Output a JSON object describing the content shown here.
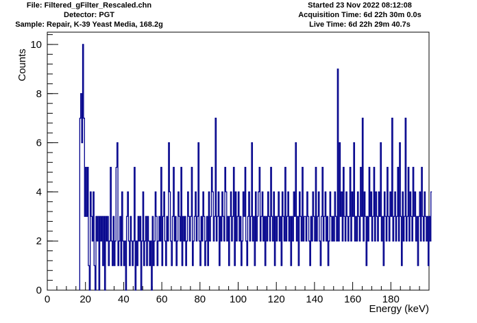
{
  "header": {
    "file": "File: Filtered_gFilter_Rescaled.chn",
    "detector": "Detector: PGT",
    "sample": "Sample: Repair, K-39 Yeast Media, 168.2g",
    "started": "Started 23 Nov 2022 08:12:08",
    "acquisition": "Acquisition Time: 6d 22h 30m 0.0s",
    "live": "Live Time: 6d 22h 29m 40.7s"
  },
  "chart_data": {
    "type": "line",
    "style": "step-histogram",
    "line_color": "#00008b",
    "xlabel": "Energy (keV)",
    "ylabel": "Counts",
    "xlim": [
      0,
      200
    ],
    "ylim": [
      0,
      10.5
    ],
    "x_ticks": [
      0,
      20,
      40,
      60,
      80,
      100,
      120,
      140,
      160,
      180
    ],
    "y_ticks": [
      0,
      2,
      4,
      6,
      8,
      10
    ],
    "x_tick_labels": [
      "0",
      "20",
      "40",
      "60",
      "80",
      "100",
      "120",
      "140",
      "160",
      "180"
    ],
    "y_tick_labels": [
      "0",
      "2",
      "4",
      "6",
      "8",
      "10"
    ],
    "grid": false,
    "bin_start": 17.0,
    "bin_width": 0.5,
    "counts": [
      7,
      8,
      6,
      10,
      7,
      3,
      5,
      3,
      5,
      1,
      0,
      4,
      3,
      2,
      4,
      1,
      0,
      3,
      2,
      3,
      0,
      3,
      2,
      3,
      1,
      3,
      0,
      3,
      2,
      3,
      1,
      2,
      5,
      2,
      1,
      3,
      1,
      2,
      5,
      6,
      1,
      2,
      3,
      1,
      4,
      2,
      1,
      2,
      0,
      3,
      4,
      2,
      1,
      3,
      2,
      1,
      2,
      5,
      0,
      2,
      1,
      3,
      2,
      3,
      0,
      2,
      4,
      1,
      2,
      3,
      1,
      3,
      2,
      1,
      2,
      0,
      3,
      1,
      2,
      4,
      3,
      1,
      2,
      3,
      2,
      5,
      1,
      3,
      4,
      2,
      1,
      3,
      2,
      6,
      4,
      2,
      1,
      3,
      5,
      2,
      3,
      1,
      2,
      4,
      3,
      2,
      5,
      1,
      3,
      2,
      3,
      1,
      2,
      4,
      3,
      2,
      3,
      5,
      1,
      2,
      3,
      4,
      2,
      3,
      6,
      2,
      1,
      3,
      2,
      4,
      3,
      1,
      2,
      3,
      1,
      4,
      2,
      3,
      5,
      4,
      2,
      3,
      7,
      2,
      3,
      4,
      1,
      3,
      2,
      4,
      3,
      2,
      5,
      4,
      2,
      3,
      1,
      3,
      4,
      2,
      3,
      5,
      1,
      4,
      2,
      3,
      4,
      2,
      3,
      1,
      2,
      4,
      3,
      5,
      2,
      1,
      3,
      4,
      2,
      3,
      6,
      2,
      3,
      1,
      4,
      2,
      3,
      4,
      5,
      2,
      3,
      4,
      2,
      3,
      1,
      3,
      2,
      4,
      3,
      2,
      5,
      3,
      2,
      4,
      1,
      3,
      2,
      3,
      4,
      2,
      3,
      1,
      4,
      3,
      2,
      5,
      2,
      3,
      4,
      2,
      3,
      1,
      3,
      2,
      4,
      3,
      6,
      2,
      3,
      1,
      4,
      3,
      2,
      5,
      2,
      3,
      3,
      2,
      4,
      3,
      2,
      1,
      3,
      2,
      4,
      3,
      2,
      5,
      2,
      3,
      4,
      2,
      1,
      3,
      5,
      2,
      3,
      4,
      2,
      3,
      1,
      2,
      4,
      3,
      2,
      3,
      2,
      4,
      3,
      2,
      9,
      2,
      6,
      3,
      4,
      2,
      5,
      3,
      2,
      4,
      3,
      2,
      3,
      5,
      2,
      4,
      3,
      6,
      2,
      3,
      2,
      4,
      3,
      2,
      5,
      3,
      7,
      2,
      4,
      3,
      1,
      3,
      2,
      5,
      3,
      4,
      2,
      3,
      5,
      2,
      4,
      3,
      2,
      4,
      3,
      6,
      2,
      3,
      1,
      4,
      3,
      2,
      5,
      3,
      2,
      4,
      3,
      7,
      2,
      3,
      4,
      2,
      3,
      5,
      2,
      6,
      3,
      1,
      4,
      2,
      3,
      7,
      2,
      3,
      5,
      2,
      4,
      3,
      2,
      5,
      3,
      4,
      2,
      3,
      1,
      3,
      4,
      2,
      5,
      3,
      2,
      4,
      3,
      2,
      3,
      1,
      3,
      2,
      4
    ]
  }
}
